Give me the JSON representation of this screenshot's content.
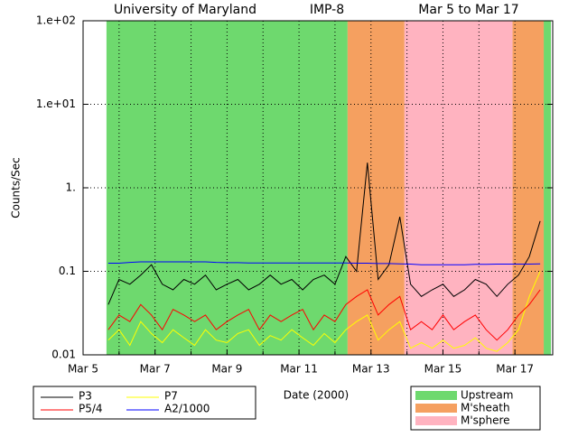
{
  "chart_data": {
    "type": "line",
    "title": [
      "University of Maryland",
      "IMP-8",
      "Mar 5 to Mar 17"
    ],
    "xlabel": "Date (2000)",
    "ylabel": "Counts/Sec",
    "log_y": true,
    "grid": true,
    "xlim": [
      5,
      18.05
    ],
    "xticks": [
      {
        "value": 5,
        "label": "Mar 5"
      },
      {
        "value": 7,
        "label": "Mar 7"
      },
      {
        "value": 9,
        "label": "Mar 9"
      },
      {
        "value": 11,
        "label": "Mar 11"
      },
      {
        "value": 13,
        "label": "Mar 13"
      },
      {
        "value": 15,
        "label": "Mar 15"
      },
      {
        "value": 17,
        "label": "Mar 17"
      }
    ],
    "xminorticks": [
      6,
      8,
      10,
      12,
      14,
      16
    ],
    "ylim": [
      0.01,
      100
    ],
    "yticks": [
      0.01,
      0.1,
      {
        "value": 1,
        "label": "1."
      },
      {
        "value": 10,
        "label": "1.e+01"
      },
      {
        "value": 100,
        "label": "1.e+02"
      }
    ],
    "regions": [
      {
        "name": "Upstream",
        "color": "#6ed96e",
        "spans": [
          [
            5.65,
            12.35
          ],
          [
            17.8,
            18.0
          ]
        ]
      },
      {
        "name": "M'sheath",
        "color": "#f5a060",
        "spans": [
          [
            12.35,
            13.93
          ],
          [
            16.93,
            17.8
          ]
        ]
      },
      {
        "name": "M'sphere",
        "color": "#ffb3c0",
        "spans": [
          [
            13.93,
            16.93
          ]
        ]
      }
    ],
    "x": [
      5.7,
      6.0,
      6.3,
      6.6,
      6.9,
      7.2,
      7.5,
      7.8,
      8.1,
      8.4,
      8.7,
      9.0,
      9.3,
      9.6,
      9.9,
      10.2,
      10.5,
      10.8,
      11.1,
      11.4,
      11.7,
      12.0,
      12.3,
      12.6,
      12.9,
      13.2,
      13.5,
      13.8,
      14.1,
      14.4,
      14.7,
      15.0,
      15.3,
      15.6,
      15.9,
      16.2,
      16.5,
      16.8,
      17.1,
      17.4,
      17.7
    ],
    "series": [
      {
        "name": "P3",
        "color": "#000000",
        "values": [
          0.04,
          0.08,
          0.07,
          0.09,
          0.12,
          0.07,
          0.06,
          0.08,
          0.07,
          0.09,
          0.06,
          0.07,
          0.08,
          0.06,
          0.07,
          0.09,
          0.07,
          0.08,
          0.06,
          0.08,
          0.09,
          0.07,
          0.15,
          0.1,
          2.0,
          0.08,
          0.12,
          0.45,
          0.07,
          0.05,
          0.06,
          0.07,
          0.05,
          0.06,
          0.08,
          0.07,
          0.05,
          0.07,
          0.09,
          0.15,
          0.4
        ]
      },
      {
        "name": "P5/4",
        "color": "#ff0000",
        "values": [
          0.02,
          0.03,
          0.025,
          0.04,
          0.03,
          0.02,
          0.035,
          0.03,
          0.025,
          0.03,
          0.02,
          0.025,
          0.03,
          0.035,
          0.02,
          0.03,
          0.025,
          0.03,
          0.035,
          0.02,
          0.03,
          0.025,
          0.04,
          0.05,
          0.06,
          0.03,
          0.04,
          0.05,
          0.02,
          0.025,
          0.02,
          0.03,
          0.02,
          0.025,
          0.03,
          0.02,
          0.015,
          0.02,
          0.03,
          0.04,
          0.06
        ]
      },
      {
        "name": "P7",
        "color": "#ffff00",
        "values": [
          0.015,
          0.02,
          0.013,
          0.025,
          0.018,
          0.014,
          0.02,
          0.016,
          0.013,
          0.02,
          0.015,
          0.014,
          0.018,
          0.02,
          0.013,
          0.017,
          0.015,
          0.02,
          0.016,
          0.013,
          0.018,
          0.014,
          0.02,
          0.025,
          0.03,
          0.015,
          0.02,
          0.025,
          0.012,
          0.014,
          0.012,
          0.015,
          0.012,
          0.013,
          0.016,
          0.012,
          0.011,
          0.014,
          0.02,
          0.05,
          0.1
        ]
      },
      {
        "name": "A2/1000",
        "color": "#0000ff",
        "values": [
          0.125,
          0.125,
          0.128,
          0.13,
          0.13,
          0.13,
          0.13,
          0.13,
          0.13,
          0.13,
          0.128,
          0.127,
          0.127,
          0.126,
          0.126,
          0.126,
          0.126,
          0.126,
          0.126,
          0.126,
          0.126,
          0.126,
          0.126,
          0.125,
          0.125,
          0.124,
          0.124,
          0.123,
          0.122,
          0.12,
          0.12,
          0.12,
          0.12,
          0.12,
          0.121,
          0.121,
          0.122,
          0.122,
          0.122,
          0.122,
          0.123
        ]
      }
    ]
  }
}
